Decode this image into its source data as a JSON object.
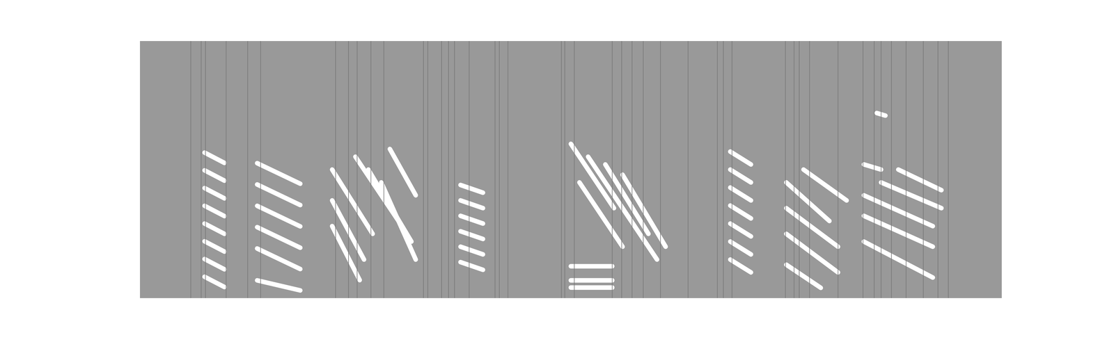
{
  "chart_data": {
    "type": "spectrogram",
    "xlim": [
      0,
      100
    ],
    "ylim": [
      0,
      100
    ],
    "tick_labels": false,
    "grid": false,
    "color": "#999999",
    "line_color": "#777777",
    "streak_color": "#000000",
    "edge_color": "#ffffff",
    "band_color": "#555555",
    "lines": [
      5.9,
      7.1,
      7.6,
      10.0,
      12.5,
      14.0,
      22.7,
      24.2,
      25.2,
      26.8,
      28.3,
      32.9,
      33.4,
      35.0,
      35.8,
      36.5,
      38.2,
      41.2,
      41.7,
      42.7,
      48.9,
      49.3,
      50.4,
      54.8,
      55.9,
      57.1,
      58.4,
      60.4,
      63.6,
      67.0,
      67.7,
      68.7,
      74.9,
      75.9,
      76.5,
      77.7,
      81.0,
      83.9,
      85.2,
      86.0,
      87.2,
      88.9,
      90.9,
      92.6,
      93.8
    ],
    "syllables": [
      {
        "extent": [
          7.3,
          10.1,
          5,
          60
        ],
        "streaks": [
          [
            7.5,
            56.6,
            9.8,
            52.6
          ],
          [
            7.5,
            49.7,
            9.8,
            45.7
          ],
          [
            7.5,
            42.8,
            9.8,
            38.8
          ],
          [
            7.5,
            35.9,
            9.8,
            31.9
          ],
          [
            7.5,
            29.0,
            9.8,
            25.0
          ],
          [
            7.5,
            22.1,
            9.8,
            18.1
          ],
          [
            7.5,
            15.2,
            9.8,
            11.2
          ],
          [
            7.5,
            8.3,
            9.8,
            4.3
          ]
        ]
      },
      {
        "extent": [
          13.4,
          18.8,
          3,
          70
        ],
        "streaks": [
          [
            13.6,
            52.5,
            18.6,
            44.5
          ],
          [
            13.6,
            44.2,
            18.6,
            36.2
          ],
          [
            13.6,
            35.9,
            18.6,
            27.9
          ],
          [
            13.6,
            27.6,
            18.6,
            19.6
          ],
          [
            13.6,
            19.3,
            18.6,
            11.3
          ],
          [
            13.6,
            6.9,
            18.6,
            3.0
          ]
        ]
      },
      {
        "extent": [
          22.1,
          32.0,
          3,
          65
        ],
        "streaks": [
          [
            22.3,
            50,
            27,
            25
          ],
          [
            22.3,
            38,
            26,
            15
          ],
          [
            22.3,
            28,
            25.5,
            7
          ],
          [
            25,
            55,
            30,
            30
          ],
          [
            26.5,
            50,
            31.5,
            22
          ],
          [
            28,
            45,
            32,
            15
          ],
          [
            29,
            58,
            32,
            40
          ]
        ]
      },
      {
        "extent": [
          36.9,
          40.2,
          5,
          45
        ],
        "streaks": [
          [
            37.2,
            44,
            39.8,
            41
          ],
          [
            37.2,
            38,
            39.8,
            35
          ],
          [
            37.2,
            32,
            39.8,
            29
          ],
          [
            37.2,
            26,
            39.8,
            23
          ],
          [
            37.2,
            20,
            39.8,
            17
          ],
          [
            37.2,
            14,
            39.8,
            11
          ]
        ]
      },
      {
        "extent": [
          43.5,
          62.1,
          3,
          70
        ],
        "streaks": [
          [
            50,
            60,
            55,
            35
          ],
          [
            52,
            55,
            57,
            30
          ],
          [
            54,
            52,
            59,
            25
          ],
          [
            56,
            48,
            61,
            20
          ],
          [
            55,
            40,
            60,
            15
          ],
          [
            51,
            45,
            56,
            20
          ],
          [
            50,
            12.4,
            54.8,
            12.4
          ],
          [
            50,
            6.9,
            54.8,
            6.9
          ],
          [
            50,
            4.1,
            54.8,
            4.1
          ]
        ]
      },
      {
        "extent": [
          68.3,
          71.1,
          3,
          60
        ],
        "streaks": [
          [
            68.5,
            57,
            70.9,
            52
          ],
          [
            68.5,
            50,
            70.9,
            45
          ],
          [
            68.5,
            43,
            70.9,
            38
          ],
          [
            68.5,
            36,
            70.9,
            31
          ],
          [
            68.5,
            29,
            70.9,
            24
          ],
          [
            68.5,
            22,
            70.9,
            17
          ],
          [
            68.5,
            15,
            70.9,
            10
          ]
        ]
      },
      {
        "extent": [
          74.4,
          82.7,
          3,
          58
        ],
        "streaks": [
          [
            75,
            45,
            80,
            30
          ],
          [
            75,
            35,
            81,
            20
          ],
          [
            75,
            25,
            81,
            10
          ],
          [
            77,
            50,
            82,
            38
          ],
          [
            75,
            13,
            79,
            4
          ]
        ]
      },
      {
        "extent": [
          83.5,
          93.4,
          3,
          65
        ],
        "streaks": [
          [
            84,
            52,
            86,
            50
          ],
          [
            84,
            40,
            92,
            28
          ],
          [
            84,
            32,
            92,
            20
          ],
          [
            84,
            22,
            92,
            8
          ],
          [
            86,
            45,
            93,
            35
          ],
          [
            88,
            50,
            93,
            42
          ],
          [
            85.5,
            72,
            86.5,
            71
          ]
        ]
      }
    ]
  }
}
